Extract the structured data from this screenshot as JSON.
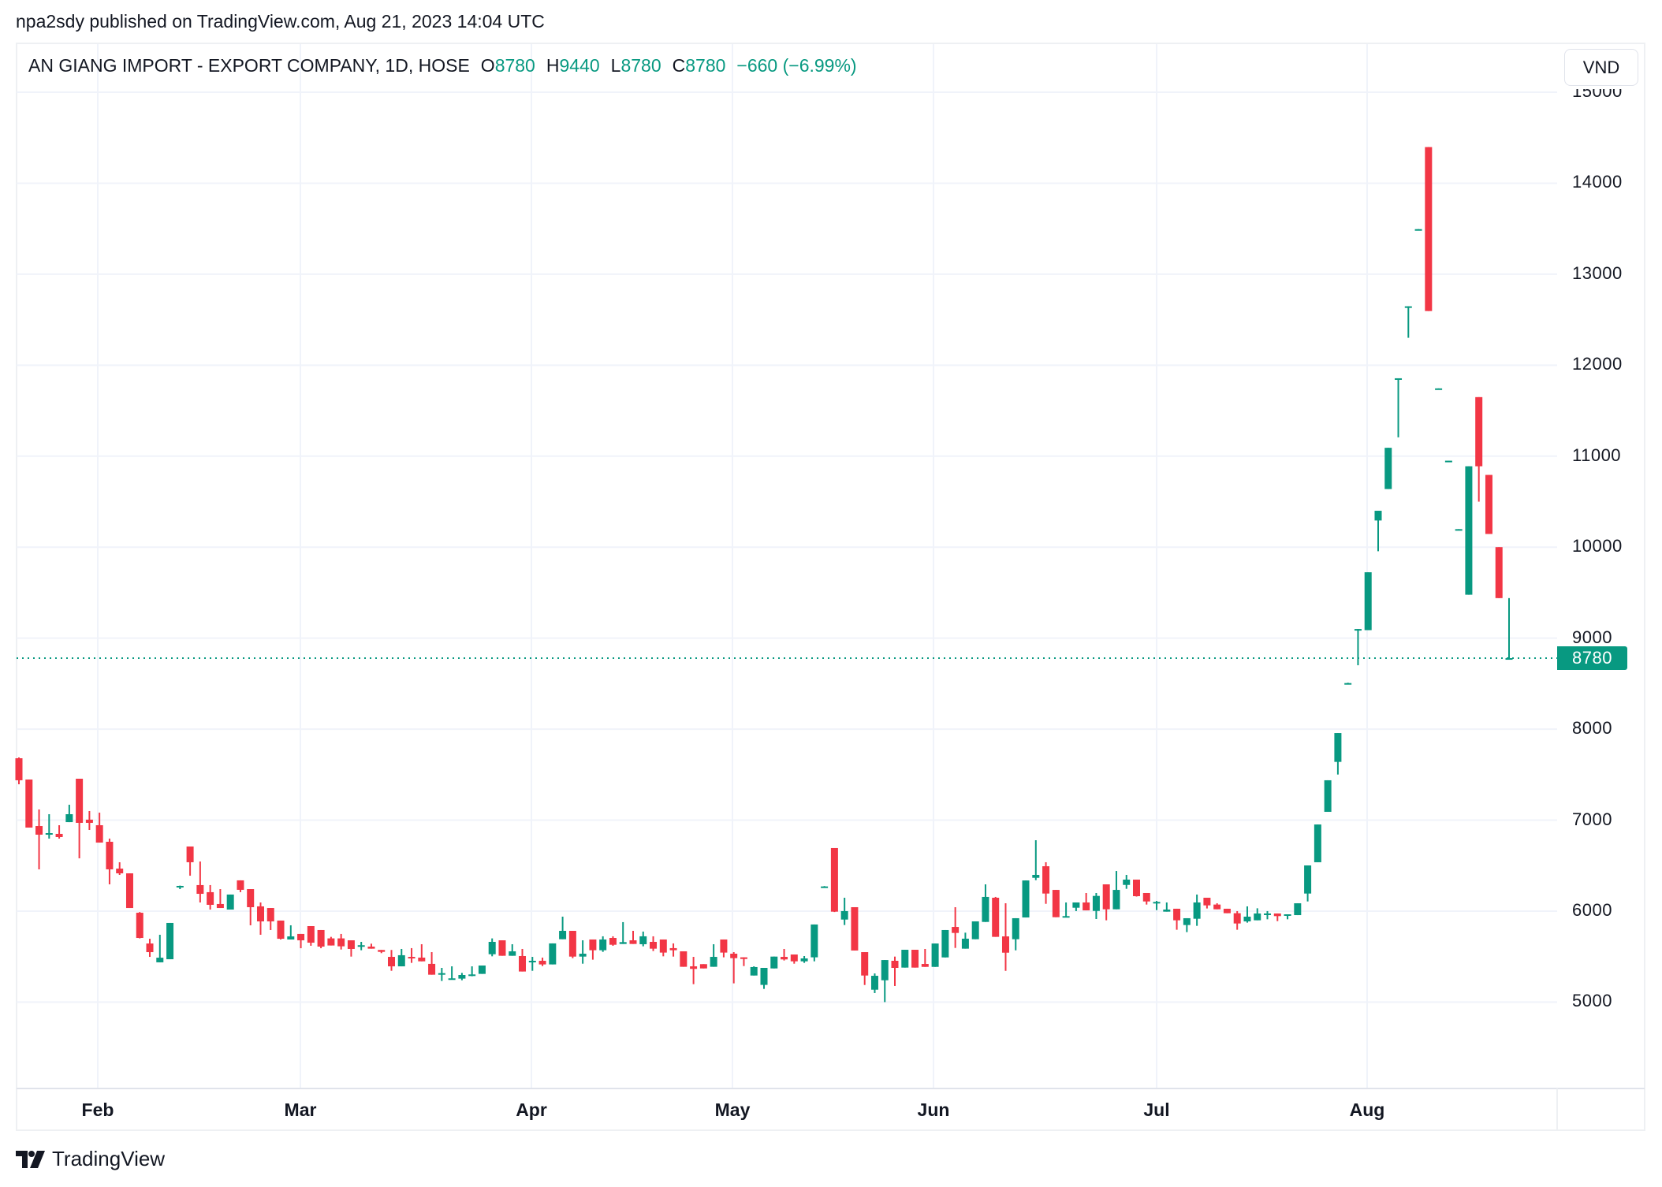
{
  "header": {
    "published": "npa2sdy published on TradingView.com, Aug 21, 2023 14:04 UTC"
  },
  "legend": {
    "symbol": "AN GIANG IMPORT - EXPORT COMPANY, 1D, HOSE",
    "open_label": "O",
    "open": "8780",
    "high_label": "H",
    "high": "9440",
    "low_label": "L",
    "low": "8780",
    "close_label": "C",
    "close": "8780",
    "change": "−660 (−6.99%)"
  },
  "currency_button": "VND",
  "last_price_label": "8780",
  "branding": "TradingView",
  "colors": {
    "up": "#089981",
    "down": "#f23645",
    "grid": "#f0f3fa",
    "text": "#131722"
  },
  "chart_data": {
    "type": "candlestick",
    "title": "AN GIANG IMPORT - EXPORT COMPANY, 1D, HOSE",
    "xlabel": "",
    "ylabel": "VND",
    "ylim": [
      4100,
      15100
    ],
    "yticks": [
      5000,
      6000,
      7000,
      8000,
      9000,
      10000,
      11000,
      12000,
      13000,
      14000,
      15000
    ],
    "xticks": [
      {
        "label": "Feb",
        "index": 8
      },
      {
        "label": "Mar",
        "index": 28
      },
      {
        "label": "Apr",
        "index": 51
      },
      {
        "label": "May",
        "index": 71
      },
      {
        "label": "Jun",
        "index": 91
      },
      {
        "label": "Jul",
        "index": 113
      },
      {
        "label": "Aug",
        "index": 134
      }
    ],
    "grid": true,
    "last_price": 8780,
    "candles": [
      [
        7680,
        7689,
        7394,
        7438
      ],
      [
        7446,
        7446,
        6918,
        6918
      ],
      [
        6935,
        7117,
        6459,
        6840
      ],
      [
        6840,
        7065,
        6797,
        6857
      ],
      [
        6849,
        6944,
        6797,
        6814
      ],
      [
        6978,
        7169,
        6978,
        7065
      ],
      [
        7455,
        7455,
        6580,
        6970
      ],
      [
        7005,
        7100,
        6892,
        6970
      ],
      [
        6944,
        7082,
        6753,
        6753
      ],
      [
        6762,
        6797,
        6294,
        6459
      ],
      [
        6467,
        6537,
        6398,
        6415
      ],
      [
        6415,
        6415,
        6034,
        6034
      ],
      [
        5982,
        5990,
        5700,
        5705
      ],
      [
        5644,
        5696,
        5497,
        5549
      ],
      [
        5437,
        5740,
        5437,
        5488
      ],
      [
        5471,
        5870,
        5471,
        5870
      ],
      [
        6268,
        6280,
        6242,
        6277
      ],
      [
        6710,
        6710,
        6389,
        6537
      ],
      [
        6286,
        6545,
        6095,
        6190
      ],
      [
        6208,
        6286,
        6017,
        6069
      ],
      [
        6078,
        6242,
        6034,
        6034
      ],
      [
        6017,
        6182,
        6017,
        6182
      ],
      [
        6338,
        6338,
        6208,
        6234
      ],
      [
        6242,
        6242,
        5844,
        6043
      ],
      [
        6052,
        6095,
        5740,
        5887
      ],
      [
        6034,
        6034,
        5792,
        5887
      ],
      [
        5896,
        5896,
        5688,
        5696
      ],
      [
        5688,
        5844,
        5688,
        5722
      ],
      [
        5749,
        5749,
        5592,
        5679
      ],
      [
        5835,
        5835,
        5619,
        5653
      ],
      [
        5792,
        5792,
        5592,
        5610
      ],
      [
        5700,
        5717,
        5622,
        5622
      ],
      [
        5700,
        5749,
        5578,
        5613
      ],
      [
        5679,
        5679,
        5500,
        5584
      ],
      [
        5613,
        5662,
        5570,
        5625
      ],
      [
        5610,
        5642,
        5587,
        5587
      ],
      [
        5573,
        5573,
        5538,
        5552
      ],
      [
        5497,
        5573,
        5344,
        5393
      ],
      [
        5393,
        5584,
        5393,
        5515
      ],
      [
        5497,
        5593,
        5431,
        5486
      ],
      [
        5489,
        5636,
        5448,
        5448
      ],
      [
        5420,
        5549,
        5301,
        5301
      ],
      [
        5310,
        5376,
        5232,
        5318
      ],
      [
        5252,
        5393,
        5252,
        5261
      ],
      [
        5258,
        5321,
        5240,
        5298
      ],
      [
        5292,
        5393,
        5284,
        5304
      ],
      [
        5310,
        5402,
        5310,
        5402
      ],
      [
        5526,
        5700,
        5503,
        5662
      ],
      [
        5679,
        5679,
        5509,
        5509
      ],
      [
        5509,
        5636,
        5509,
        5558
      ],
      [
        5506,
        5584,
        5336,
        5336
      ],
      [
        5443,
        5497,
        5344,
        5454
      ],
      [
        5454,
        5489,
        5396,
        5414
      ],
      [
        5414,
        5645,
        5414,
        5645
      ],
      [
        5691,
        5939,
        5691,
        5783
      ],
      [
        5783,
        5783,
        5483,
        5500
      ],
      [
        5500,
        5679,
        5422,
        5532
      ],
      [
        5688,
        5688,
        5466,
        5570
      ],
      [
        5570,
        5723,
        5552,
        5688
      ],
      [
        5705,
        5723,
        5619,
        5630
      ],
      [
        5639,
        5879,
        5639,
        5659
      ],
      [
        5679,
        5783,
        5639,
        5639
      ],
      [
        5636,
        5775,
        5613,
        5723
      ],
      [
        5662,
        5723,
        5561,
        5587
      ],
      [
        5688,
        5688,
        5503,
        5544
      ],
      [
        5593,
        5645,
        5500,
        5570
      ],
      [
        5558,
        5558,
        5388,
        5388
      ],
      [
        5393,
        5497,
        5197,
        5365
      ],
      [
        5417,
        5417,
        5370,
        5370
      ],
      [
        5388,
        5636,
        5388,
        5497
      ],
      [
        5688,
        5688,
        5492,
        5544
      ],
      [
        5532,
        5549,
        5206,
        5483
      ],
      [
        5492,
        5492,
        5396,
        5474
      ],
      [
        5292,
        5393,
        5292,
        5385
      ],
      [
        5189,
        5376,
        5145,
        5376
      ],
      [
        5370,
        5500,
        5370,
        5500
      ],
      [
        5497,
        5584,
        5457,
        5469
      ],
      [
        5523,
        5523,
        5422,
        5448
      ],
      [
        5448,
        5506,
        5431,
        5480
      ],
      [
        5492,
        5853,
        5448,
        5853
      ],
      [
        6260,
        6275,
        6255,
        6271
      ],
      [
        6693,
        6693,
        5990,
        5994
      ],
      [
        5907,
        6147,
        5847,
        6000
      ],
      [
        6043,
        6043,
        5567,
        5567
      ],
      [
        5549,
        5549,
        5188,
        5292
      ],
      [
        5136,
        5315,
        5099,
        5289
      ],
      [
        5240,
        5462,
        5000,
        5462
      ],
      [
        5454,
        5500,
        5177,
        5376
      ],
      [
        5379,
        5575,
        5379,
        5575
      ],
      [
        5575,
        5575,
        5379,
        5379
      ],
      [
        5419,
        5584,
        5387,
        5387
      ],
      [
        5387,
        5644,
        5387,
        5644
      ],
      [
        5491,
        5792,
        5491,
        5792
      ],
      [
        5826,
        6043,
        5595,
        5760
      ],
      [
        5587,
        5763,
        5587,
        5697
      ],
      [
        5691,
        5887,
        5691,
        5887
      ],
      [
        5881,
        6294,
        5881,
        6156
      ],
      [
        6147,
        6156,
        5717,
        5717
      ],
      [
        5722,
        6086,
        5344,
        5543
      ],
      [
        5691,
        5922,
        5569,
        5922
      ],
      [
        5930,
        6337,
        5930,
        6337
      ],
      [
        6366,
        6779,
        6340,
        6398
      ],
      [
        6493,
        6537,
        6080,
        6193
      ],
      [
        6233,
        6233,
        5933,
        5933
      ],
      [
        5933,
        6095,
        5933,
        5945
      ],
      [
        6037,
        6095,
        6000,
        6095
      ],
      [
        6095,
        6199,
        6008,
        6008
      ],
      [
        6002,
        6199,
        5913,
        6167
      ],
      [
        6294,
        6294,
        5899,
        6020
      ],
      [
        6020,
        6441,
        6020,
        6233
      ],
      [
        6288,
        6398,
        6245,
        6346
      ],
      [
        6346,
        6346,
        6160,
        6164
      ],
      [
        6199,
        6199,
        6072,
        6106
      ],
      [
        6086,
        6112,
        6011,
        6101
      ],
      [
        5994,
        6095,
        5994,
        6017
      ],
      [
        6026,
        6026,
        5795,
        5899
      ],
      [
        5847,
        5922,
        5769,
        5922
      ],
      [
        5916,
        6182,
        5838,
        6095
      ],
      [
        6147,
        6147,
        6029,
        6063
      ],
      [
        6072,
        6086,
        6020,
        6020
      ],
      [
        6026,
        6026,
        5977,
        5977
      ],
      [
        5977,
        6000,
        5795,
        5864
      ],
      [
        5887,
        6052,
        5873,
        5939
      ],
      [
        5899,
        6031,
        5899,
        5974
      ],
      [
        5962,
        6000,
        5910,
        5974
      ],
      [
        5974,
        5974,
        5890,
        5945
      ],
      [
        5948,
        5965,
        5910,
        5965
      ],
      [
        5956,
        6086,
        5956,
        6086
      ],
      [
        6193,
        6502,
        6106,
        6502
      ],
      [
        6537,
        6952,
        6537,
        6952
      ],
      [
        7091,
        7438,
        7091,
        7438
      ],
      [
        7640,
        7957,
        7501,
        7957
      ],
      [
        8492,
        8510,
        8490,
        8506
      ],
      [
        9088,
        9100,
        8702,
        9100
      ],
      [
        9088,
        9724,
        9088,
        9724
      ],
      [
        10293,
        10400,
        9955,
        10400
      ],
      [
        10639,
        11092,
        10639,
        11092
      ],
      [
        11844,
        11856,
        11207,
        11856
      ],
      [
        12639,
        12647,
        12301,
        12647
      ],
      [
        13485,
        13495,
        13485,
        13495
      ],
      [
        14397,
        14397,
        12595,
        12595
      ],
      [
        11735,
        11745,
        11735,
        11745
      ],
      [
        10940,
        10950,
        10940,
        10950
      ],
      [
        10188,
        10198,
        10188,
        10198
      ],
      [
        9477,
        10889,
        9477,
        10889
      ],
      [
        11649,
        11649,
        10500,
        10889
      ],
      [
        10794,
        10794,
        10145,
        10145
      ],
      [
        10000,
        10000,
        9440,
        9440
      ],
      [
        8780,
        9440,
        8780,
        8780
      ]
    ],
    "candle_format": [
      "open",
      "high",
      "low",
      "close"
    ]
  },
  "axis": {
    "price_labels": [
      "15000",
      "14000",
      "13000",
      "12000",
      "11000",
      "10000",
      "9000",
      "8000",
      "7000",
      "6000",
      "5000"
    ],
    "months": [
      "Feb",
      "Mar",
      "Apr",
      "May",
      "Jun",
      "Jul",
      "Aug"
    ]
  }
}
